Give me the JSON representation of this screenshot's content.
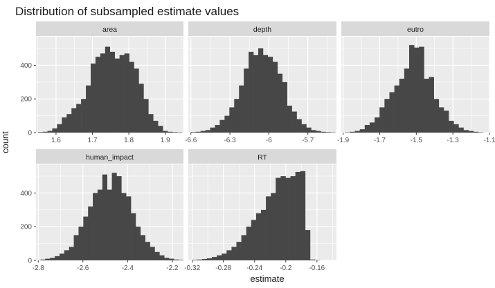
{
  "chart_data": {
    "type": "histogram",
    "title": "Distribution of subsampled estimate values",
    "xlabel": "estimate",
    "ylabel": "count",
    "facet_layout": "3 columns, 2 rows, free x scales, shared y",
    "colors": {
      "bar": "#474747",
      "panel_bg": "#ebebeb",
      "strip_bg": "#d9d9d9",
      "grid": "#ffffff"
    },
    "ylim": [
      0,
      570
    ],
    "yticks": [
      0,
      200,
      400
    ],
    "panels": [
      {
        "label": "area",
        "xlim": [
          1.545,
          1.95
        ],
        "xticks": [
          1.6,
          1.7,
          1.8,
          1.9
        ],
        "bins": {
          "start": 1.55,
          "width": 0.0132,
          "counts": [
            3,
            5,
            10,
            25,
            50,
            90,
            110,
            145,
            170,
            200,
            280,
            410,
            450,
            470,
            510,
            480,
            440,
            460,
            470,
            420,
            380,
            290,
            200,
            110,
            70,
            40,
            10,
            5,
            3,
            2
          ]
        }
      },
      {
        "label": "depth",
        "xlim": [
          -6.62,
          -5.48
        ],
        "xticks": [
          -6.6,
          -6.3,
          -6.0,
          -5.7
        ],
        "bins": {
          "start": -6.6,
          "width": 0.037,
          "counts": [
            3,
            5,
            10,
            15,
            30,
            45,
            75,
            100,
            150,
            200,
            280,
            380,
            480,
            460,
            500,
            460,
            450,
            420,
            350,
            300,
            160,
            125,
            80,
            50,
            30,
            15,
            10,
            5,
            3,
            2
          ]
        }
      },
      {
        "label": "eutro",
        "xlim": [
          -1.91,
          -1.1
        ],
        "xticks": [
          -1.9,
          -1.7,
          -1.5,
          -1.3,
          -1.1
        ],
        "bins": {
          "start": -1.89,
          "width": 0.027,
          "counts": [
            2,
            5,
            10,
            20,
            45,
            60,
            90,
            150,
            200,
            240,
            280,
            320,
            380,
            520,
            505,
            510,
            320,
            330,
            200,
            150,
            130,
            70,
            50,
            30,
            15,
            10,
            5,
            2
          ]
        }
      },
      {
        "label": "human_impact",
        "xlim": [
          -2.81,
          -2.15
        ],
        "xticks": [
          -2.8,
          -2.6,
          -2.4,
          -2.2
        ],
        "bins": {
          "start": -2.79,
          "width": 0.0213,
          "counts": [
            5,
            10,
            15,
            25,
            40,
            60,
            80,
            150,
            200,
            260,
            320,
            400,
            420,
            510,
            420,
            520,
            500,
            400,
            380,
            280,
            200,
            150,
            110,
            80,
            50,
            30,
            15,
            10,
            5,
            3
          ]
        }
      },
      {
        "label": "RT",
        "xlim": [
          -0.325,
          -0.135
        ],
        "xticks": [
          -0.32,
          -0.28,
          -0.24,
          -0.2,
          -0.16
        ],
        "bins": {
          "start": -0.32,
          "width": 0.0063,
          "counts": [
            3,
            5,
            8,
            12,
            20,
            30,
            40,
            60,
            80,
            110,
            150,
            200,
            240,
            280,
            300,
            380,
            400,
            490,
            500,
            490,
            500,
            525,
            530,
            180,
            5,
            2
          ]
        }
      }
    ]
  }
}
